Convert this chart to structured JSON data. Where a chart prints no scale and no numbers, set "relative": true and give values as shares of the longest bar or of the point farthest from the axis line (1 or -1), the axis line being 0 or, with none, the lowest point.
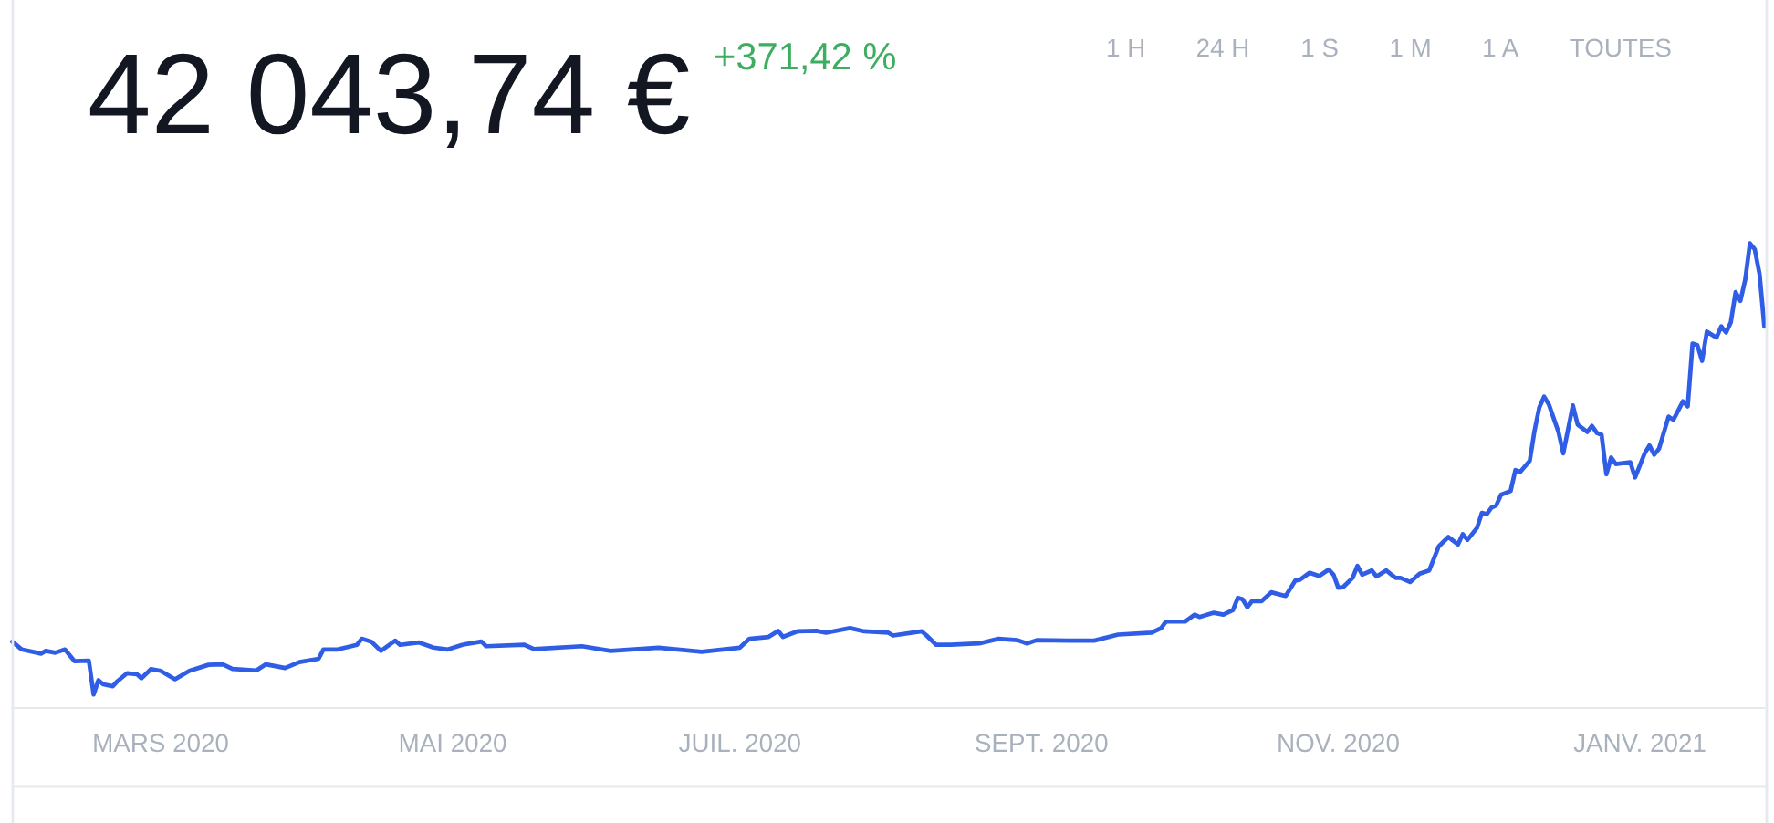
{
  "chart_data": {
    "type": "line",
    "title": "42 043,74 €",
    "subtitle": "+371,42 %",
    "annotations": [
      "1 H",
      "24 H",
      "1 S",
      "1 M",
      "1 A",
      "TOUTES"
    ],
    "relative": true,
    "tick_labels": "x",
    "line_style": "solid",
    "xlim": [
      "2020-02-24",
      "2021-02-24"
    ],
    "xticks": [
      {
        "value": "2020-03-26",
        "label": "MARS 2020"
      },
      {
        "value": "2020-05-26",
        "label": "MAI 2020"
      },
      {
        "value": "2020-07-25",
        "label": "JUIL. 2020"
      },
      {
        "value": "2020-09-26",
        "label": "SEPT. 2020"
      },
      {
        "value": "2020-11-27",
        "label": "NOV. 2020"
      },
      {
        "value": "2021-01-29",
        "label": "JANV. 2021"
      }
    ],
    "x": [
      "2020-02-24",
      "2020-02-26",
      "2020-03-01",
      "2020-03-02",
      "2020-03-04",
      "2020-03-06",
      "2020-03-08",
      "2020-03-11",
      "2020-03-12",
      "2020-03-13",
      "2020-03-14",
      "2020-03-16",
      "2020-03-17",
      "2020-03-19",
      "2020-03-21",
      "2020-03-22",
      "2020-03-24",
      "2020-03-26",
      "2020-03-29",
      "2020-04-01",
      "2020-04-05",
      "2020-04-08",
      "2020-04-10",
      "2020-04-15",
      "2020-04-17",
      "2020-04-21",
      "2020-04-24",
      "2020-04-28",
      "2020-04-29",
      "2020-05-02",
      "2020-05-06",
      "2020-05-07",
      "2020-05-09",
      "2020-05-11",
      "2020-05-14",
      "2020-05-15",
      "2020-05-19",
      "2020-05-22",
      "2020-05-25",
      "2020-05-28",
      "2020-06-01",
      "2020-06-02",
      "2020-06-10",
      "2020-06-12",
      "2020-06-22",
      "2020-06-28",
      "2020-07-08",
      "2020-07-17",
      "2020-07-25",
      "2020-07-27",
      "2020-07-31",
      "2020-08-02",
      "2020-08-03",
      "2020-08-06",
      "2020-08-10",
      "2020-08-12",
      "2020-08-17",
      "2020-08-20",
      "2020-08-25",
      "2020-08-26",
      "2020-09-01",
      "2020-09-02",
      "2020-09-04",
      "2020-09-07",
      "2020-09-13",
      "2020-09-17",
      "2020-09-21",
      "2020-09-23",
      "2020-09-25",
      "2020-10-02",
      "2020-10-07",
      "2020-10-12",
      "2020-10-19",
      "2020-10-21",
      "2020-10-22",
      "2020-10-26",
      "2020-10-28",
      "2020-10-29",
      "2020-11-01",
      "2020-11-03",
      "2020-11-05",
      "2020-11-06",
      "2020-11-07",
      "2020-11-08",
      "2020-11-09",
      "2020-11-11",
      "2020-11-13",
      "2020-11-16",
      "2020-11-18",
      "2020-11-19",
      "2020-11-21",
      "2020-11-23",
      "2020-11-25",
      "2020-11-26",
      "2020-11-27",
      "2020-11-28",
      "2020-11-30",
      "2020-12-01",
      "2020-12-02",
      "2020-12-04",
      "2020-12-05",
      "2020-12-07",
      "2020-12-09",
      "2020-12-10",
      "2020-12-12",
      "2020-12-14",
      "2020-12-16",
      "2020-12-18",
      "2020-12-20",
      "2020-12-22",
      "2020-12-23",
      "2020-12-24",
      "2020-12-26",
      "2020-12-27",
      "2020-12-28",
      "2020-12-29",
      "2020-12-30",
      "2020-12-31",
      "2021-01-02",
      "2021-01-03",
      "2021-01-04",
      "2021-01-06",
      "2021-01-07",
      "2021-01-08",
      "2021-01-09",
      "2021-01-10",
      "2021-01-12",
      "2021-01-13",
      "2021-01-15",
      "2021-01-16",
      "2021-01-18",
      "2021-01-19",
      "2021-01-20",
      "2021-01-21",
      "2021-01-22",
      "2021-01-23",
      "2021-01-24",
      "2021-01-27",
      "2021-01-28",
      "2021-01-30",
      "2021-01-31",
      "2021-02-01",
      "2021-02-02",
      "2021-02-04",
      "2021-02-05",
      "2021-02-07",
      "2021-02-08",
      "2021-02-09",
      "2021-02-10",
      "2021-02-11",
      "2021-02-12",
      "2021-02-14",
      "2021-02-15",
      "2021-02-16",
      "2021-02-17",
      "2021-02-18",
      "2021-02-19",
      "2021-02-20",
      "2021-02-21",
      "2021-02-22",
      "2021-02-23",
      "2021-02-24"
    ],
    "series": [
      {
        "color": "#2f5de6",
        "values": [
          0.143,
          0.126,
          0.117,
          0.123,
          0.119,
          0.126,
          0.101,
          0.102,
          0.029,
          0.06,
          0.051,
          0.047,
          0.058,
          0.075,
          0.073,
          0.064,
          0.084,
          0.08,
          0.062,
          0.08,
          0.093,
          0.094,
          0.084,
          0.081,
          0.094,
          0.086,
          0.099,
          0.106,
          0.126,
          0.126,
          0.136,
          0.149,
          0.143,
          0.123,
          0.145,
          0.136,
          0.141,
          0.13,
          0.126,
          0.136,
          0.143,
          0.133,
          0.136,
          0.127,
          0.133,
          0.123,
          0.13,
          0.121,
          0.13,
          0.149,
          0.153,
          0.166,
          0.153,
          0.165,
          0.166,
          0.162,
          0.172,
          0.165,
          0.162,
          0.156,
          0.165,
          0.156,
          0.136,
          0.136,
          0.139,
          0.149,
          0.146,
          0.139,
          0.146,
          0.145,
          0.145,
          0.158,
          0.162,
          0.172,
          0.186,
          0.186,
          0.201,
          0.196,
          0.205,
          0.201,
          0.211,
          0.237,
          0.234,
          0.217,
          0.23,
          0.23,
          0.249,
          0.241,
          0.274,
          0.276,
          0.291,
          0.284,
          0.298,
          0.287,
          0.259,
          0.26,
          0.28,
          0.306,
          0.287,
          0.296,
          0.283,
          0.296,
          0.28,
          0.28,
          0.271,
          0.289,
          0.296,
          0.348,
          0.368,
          0.352,
          0.374,
          0.362,
          0.388,
          0.42,
          0.417,
          0.431,
          0.436,
          0.459,
          0.467,
          0.512,
          0.508,
          0.532,
          0.597,
          0.647,
          0.67,
          0.653,
          0.594,
          0.548,
          0.651,
          0.61,
          0.594,
          0.607,
          0.592,
          0.588,
          0.503,
          0.539,
          0.525,
          0.529,
          0.496,
          0.548,
          0.565,
          0.545,
          0.558,
          0.627,
          0.62,
          0.66,
          0.649,
          0.784,
          0.781,
          0.747,
          0.81,
          0.797,
          0.821,
          0.808,
          0.83,
          0.895,
          0.876,
          0.921,
          1.0,
          0.987,
          0.934,
          0.821
        ]
      }
    ]
  }
}
